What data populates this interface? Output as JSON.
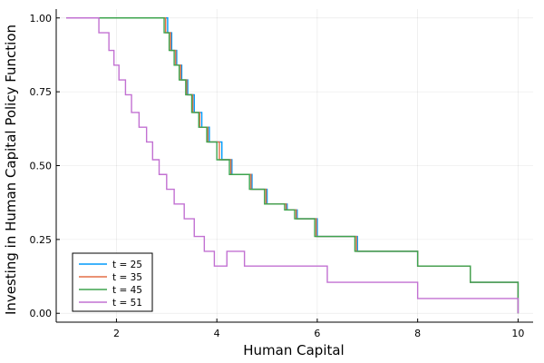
{
  "chart_data": {
    "type": "line",
    "xlabel": "Human Capital",
    "ylabel": "Investing in Human Capital Policy Function",
    "xlim": [
      0.8,
      10.3
    ],
    "ylim": [
      -0.03,
      1.03
    ],
    "xticks": [
      2,
      4,
      6,
      8,
      10
    ],
    "xtick_labels": [
      "2",
      "4",
      "6",
      "8",
      "10"
    ],
    "yticks": [
      0,
      0.25,
      0.5,
      0.75,
      1.0
    ],
    "ytick_labels": [
      "0.00",
      "0.25",
      "0.50",
      "0.75",
      "1.00"
    ],
    "grid": true,
    "legend_position": "bottom-left",
    "series": [
      {
        "name": "t = 25",
        "color": "#009AFA",
        "x": [
          1.0,
          2.85,
          3.02,
          3.1,
          3.2,
          3.3,
          3.42,
          3.55,
          3.7,
          3.85,
          4.1,
          4.3,
          4.7,
          5.0,
          5.4,
          5.6,
          6.0,
          6.3,
          6.8,
          7.3,
          8.0,
          8.4,
          9.05,
          9.95,
          10.0
        ],
        "y": [
          1.0,
          1.0,
          0.95,
          0.89,
          0.84,
          0.79,
          0.74,
          0.68,
          0.63,
          0.58,
          0.52,
          0.47,
          0.42,
          0.37,
          0.35,
          0.32,
          0.26,
          0.26,
          0.21,
          0.21,
          0.16,
          0.16,
          0.105,
          0.105,
          0.0
        ]
      },
      {
        "name": "t = 35",
        "color": "#E36F47",
        "x": [
          1.0,
          2.8,
          2.98,
          3.08,
          3.18,
          3.28,
          3.4,
          3.52,
          3.66,
          3.82,
          4.05,
          4.28,
          4.68,
          4.98,
          5.38,
          5.58,
          5.98,
          6.28,
          6.78,
          7.28,
          8.0,
          8.5,
          9.05,
          9.95,
          10.0
        ],
        "y": [
          1.0,
          1.0,
          0.95,
          0.89,
          0.84,
          0.79,
          0.74,
          0.68,
          0.63,
          0.58,
          0.52,
          0.47,
          0.42,
          0.37,
          0.35,
          0.32,
          0.26,
          0.26,
          0.21,
          0.21,
          0.16,
          0.16,
          0.105,
          0.105,
          0.0
        ]
      },
      {
        "name": "t = 45",
        "color": "#3EA44E",
        "x": [
          1.0,
          2.75,
          2.95,
          3.05,
          3.15,
          3.25,
          3.38,
          3.5,
          3.64,
          3.8,
          4.0,
          4.25,
          4.65,
          4.95,
          5.35,
          5.55,
          5.95,
          6.25,
          6.75,
          7.25,
          8.0,
          8.4,
          9.05,
          9.95,
          10.0
        ],
        "y": [
          1.0,
          1.0,
          0.95,
          0.89,
          0.84,
          0.79,
          0.74,
          0.68,
          0.63,
          0.58,
          0.52,
          0.47,
          0.42,
          0.37,
          0.35,
          0.32,
          0.26,
          0.26,
          0.21,
          0.21,
          0.16,
          0.16,
          0.105,
          0.105,
          0.0
        ]
      },
      {
        "name": "t = 51",
        "color": "#C271D2",
        "x": [
          1.0,
          1.45,
          1.65,
          1.85,
          1.95,
          2.05,
          2.18,
          2.3,
          2.45,
          2.6,
          2.72,
          2.85,
          3.0,
          3.15,
          3.35,
          3.55,
          3.75,
          3.95,
          4.2,
          4.55,
          5.0,
          5.7,
          6.2,
          7.0,
          8.0,
          9.0,
          9.95,
          10.0
        ],
        "y": [
          1.0,
          1.0,
          0.95,
          0.89,
          0.84,
          0.79,
          0.74,
          0.68,
          0.63,
          0.58,
          0.52,
          0.47,
          0.42,
          0.37,
          0.32,
          0.26,
          0.21,
          0.16,
          0.21,
          0.16,
          0.16,
          0.16,
          0.105,
          0.105,
          0.05,
          0.05,
          0.05,
          0.0
        ]
      }
    ]
  }
}
